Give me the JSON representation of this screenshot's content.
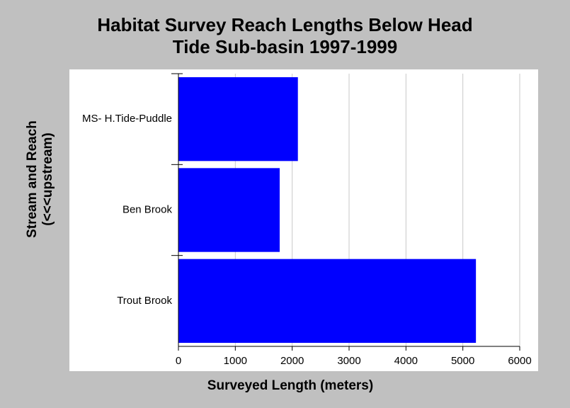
{
  "chart_data": {
    "type": "bar",
    "orientation": "horizontal",
    "title": [
      "Habitat Survey Reach Lengths Below Head",
      "Tide Sub-basin 1997-1999"
    ],
    "xlabel": "Surveyed Length (meters)",
    "ylabel": [
      "Stream and Reach",
      "(<<<upstream)"
    ],
    "categories": [
      "MS- H.Tide-Puddle",
      "Ben Brook",
      "Trout Brook"
    ],
    "values": [
      2100,
      1780,
      5230
    ],
    "xlim": [
      0,
      6000
    ],
    "xticks": [
      0,
      1000,
      2000,
      3000,
      4000,
      5000,
      6000
    ],
    "grid": true,
    "legend": "none",
    "bar_color": "#0000ff",
    "background_color": "#c0c0c0",
    "plot_background": "#ffffff",
    "gridline_color": "#c8c8c8"
  }
}
